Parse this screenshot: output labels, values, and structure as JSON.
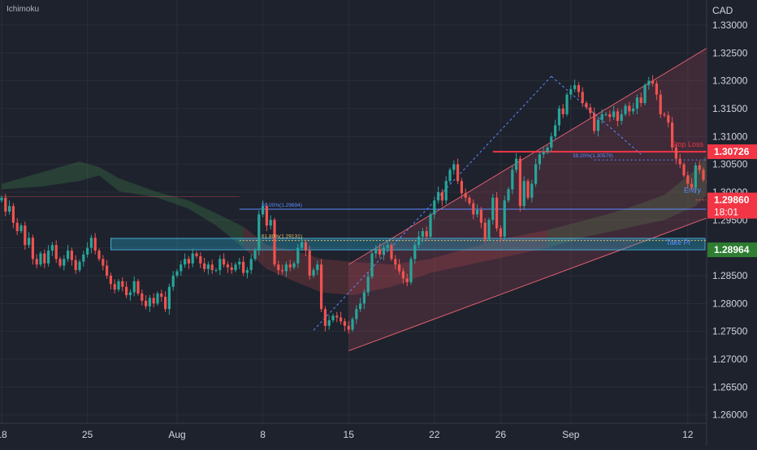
{
  "header": {
    "indicator_label": "Ichimoku"
  },
  "price_axis": {
    "currency": "CAD",
    "ticks": [
      "1.33000",
      "1.32500",
      "1.32000",
      "1.31500",
      "1.31000",
      "1.30500",
      "1.30000",
      "1.29500",
      "1.29000",
      "1.28500",
      "1.28000",
      "1.27500",
      "1.27000",
      "1.26500",
      "1.26000"
    ],
    "tick_values": [
      1.33,
      1.325,
      1.32,
      1.315,
      1.31,
      1.305,
      1.3,
      1.295,
      1.29,
      1.285,
      1.28,
      1.275,
      1.27,
      1.265,
      1.26
    ],
    "range": [
      1.2585,
      1.3345
    ]
  },
  "time_axis": {
    "ticks": [
      "18",
      "25",
      "Aug",
      "8",
      "15",
      "22",
      "26",
      "Sep",
      "12"
    ],
    "tick_index": [
      0,
      22,
      45,
      67,
      89,
      111,
      128,
      146,
      176
    ]
  },
  "colors": {
    "background": "#1e222d",
    "up": "#26a69a",
    "down": "#ef5350",
    "channel": "#e0606e",
    "fib": "#2962ff",
    "stop": "#f23645",
    "zone": "#1f5570"
  },
  "badges": {
    "stop_loss": "1.30726",
    "current_price": "1.29860",
    "countdown": "18:01",
    "take_profit": "1.28964"
  },
  "annotations": {
    "stop_loss": "Stop Loss",
    "entry": "Entry",
    "take_profit": "Take Pr",
    "fib_382": "38.20%(1.30579)",
    "fib_500": "50.00%(1.29694)",
    "fib_618": "61.80%(1.29131)"
  },
  "chart_data": {
    "type": "candlestick",
    "instrument_quote": "CAD",
    "y_range": [
      1.2585,
      1.3345
    ],
    "levels": {
      "stop_loss": 1.30726,
      "current": 1.2986,
      "take_profit": 1.28964,
      "fib_382": 1.30579,
      "fib_500": 1.29694,
      "fib_618": 1.29131
    },
    "take_profit_zone": [
      1.28964,
      1.2917
    ],
    "channel": {
      "lower": [
        [
          89,
          1.2715
        ],
        [
          193,
          1.2985
        ]
      ],
      "upper": [
        [
          89,
          1.287
        ],
        [
          193,
          1.331
        ]
      ]
    },
    "cloud": [
      [
        0,
        1.3015,
        1.3005
      ],
      [
        10,
        1.3035,
        1.301
      ],
      [
        20,
        1.3055,
        1.302
      ],
      [
        25,
        1.3045,
        1.303
      ],
      [
        30,
        1.3025,
        1.3002
      ],
      [
        40,
        1.3,
        1.299
      ],
      [
        48,
        1.2985,
        1.297
      ],
      [
        55,
        1.2962,
        1.294
      ],
      [
        62,
        1.2938,
        1.29
      ],
      [
        68,
        1.2905,
        1.2862
      ],
      [
        75,
        1.2895,
        1.284
      ],
      [
        82,
        1.288,
        1.282
      ],
      [
        90,
        1.2875,
        1.2815
      ],
      [
        100,
        1.287,
        1.283
      ],
      [
        110,
        1.288,
        1.2855
      ],
      [
        120,
        1.29,
        1.287
      ],
      [
        130,
        1.2918,
        1.2885
      ],
      [
        140,
        1.2932,
        1.29
      ],
      [
        150,
        1.295,
        1.292
      ],
      [
        160,
        1.297,
        1.2935
      ],
      [
        170,
        1.2995,
        1.295
      ],
      [
        178,
        1.304,
        1.2975
      ],
      [
        186,
        1.312,
        1.303
      ],
      [
        193,
        1.315,
        1.3065
      ],
      [
        200,
        1.315,
        1.308
      ]
    ],
    "close": [
      1.299,
      1.2965,
      1.2975,
      1.2945,
      1.293,
      1.294,
      1.2905,
      1.2918,
      1.288,
      1.287,
      1.289,
      1.2872,
      1.2895,
      1.2905,
      1.288,
      1.2868,
      1.288,
      1.2895,
      1.2878,
      1.286,
      1.2875,
      1.2888,
      1.29,
      1.2918,
      1.2895,
      1.288,
      1.2868,
      1.285,
      1.2835,
      1.2825,
      1.284,
      1.283,
      1.2815,
      1.282,
      1.284,
      1.2818,
      1.2805,
      1.2795,
      1.281,
      1.28,
      1.2818,
      1.2812,
      1.279,
      1.283,
      1.285,
      1.2858,
      1.287,
      1.288,
      1.2872,
      1.289,
      1.2885,
      1.2872,
      1.2862,
      1.287,
      1.286,
      1.286,
      1.288,
      1.287,
      1.2865,
      1.286,
      1.287,
      1.2875,
      1.2855,
      1.286,
      1.288,
      1.2895,
      1.296,
      1.2975,
      1.294,
      1.295,
      1.287,
      1.286,
      1.2858,
      1.287,
      1.2865,
      1.2872,
      1.29,
      1.291,
      1.2895,
      1.285,
      1.286,
      1.287,
      1.279,
      1.276,
      1.277,
      1.2778,
      1.2775,
      1.2768,
      1.276,
      1.2753,
      1.2772,
      1.279,
      1.28,
      1.282,
      1.2848,
      1.289,
      1.2898,
      1.2888,
      1.29,
      1.2905,
      1.288,
      1.287,
      1.2858,
      1.2845,
      1.2838,
      1.288,
      1.2905,
      1.292,
      1.293,
      1.292,
      1.296,
      1.2985,
      1.3,
      1.2985,
      1.302,
      1.304,
      1.305,
      1.302,
      1.2998,
      1.299,
      1.298,
      1.296,
      1.2968,
      1.2945,
      1.2915,
      1.295,
      1.299,
      1.2935,
      1.292,
      1.2985,
      1.3005,
      1.304,
      1.306,
      1.2975,
      1.302,
      1.299,
      1.3015,
      1.305,
      1.3068,
      1.3072,
      1.308,
      1.31,
      1.312,
      1.315,
      1.314,
      1.3175,
      1.3185,
      1.3192,
      1.318,
      1.316,
      1.3152,
      1.3142,
      1.311,
      1.313,
      1.314,
      1.314,
      1.3135,
      1.3145,
      1.3128,
      1.314,
      1.3155,
      1.3145,
      1.315,
      1.317,
      1.316,
      1.3192,
      1.32,
      1.3195,
      1.3175,
      1.314,
      1.3138,
      1.3125,
      1.308,
      1.306,
      1.305,
      1.303,
      1.3015,
      1.3008,
      1.3048,
      1.304,
      1.3022,
      1.3015,
      1.299,
      1.2975,
      1.2983,
      1.2986
    ],
    "x_labels": [
      "18",
      "25",
      "Aug",
      "8",
      "15",
      "22",
      "26",
      "Sep",
      "12"
    ]
  }
}
